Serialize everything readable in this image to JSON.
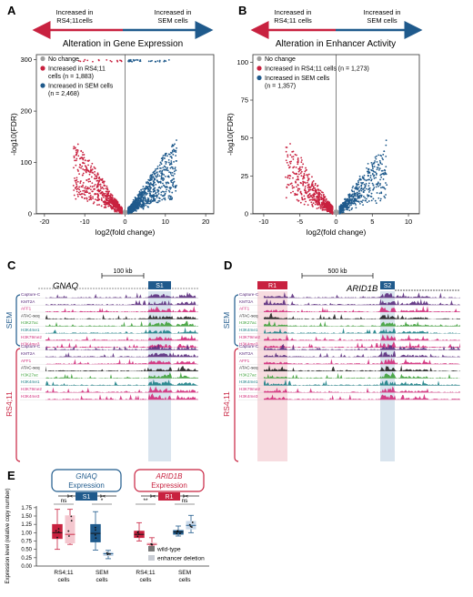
{
  "colors": {
    "red": "#c8213f",
    "blue": "#1f5a8c",
    "gray": "#9e9e9e",
    "pink_light": "#f4c7cf",
    "blue_light": "#c9d9ea",
    "region_red": "#f2c4cc",
    "region_blue": "#b9cde0",
    "track_purple": "#5b2d7e",
    "track_pink": "#d12b7a",
    "track_green": "#3ea13a",
    "track_teal": "#1a7f86",
    "track_black": "#222222"
  },
  "panelA": {
    "letter": "A",
    "arrow_left": "Increased in RS4;11cells",
    "arrow_right": "Increased in SEM cells",
    "title": "Alteration in Gene Expression",
    "legend": [
      "No change",
      "Increased in RS4;11 cells (n = 1,883)",
      "Increased in SEM cells (n = 2,468)"
    ]
  },
  "panelB": {
    "letter": "B",
    "arrow_left": "Increased in RS4;11 cells",
    "arrow_right": "Increased in SEM cells",
    "title": "Alteration in Enhancer Activity",
    "legend": [
      "No change",
      "Increased in RS4;11 cells (n = 1,273)",
      "Increased in SEM cells (n = 1,357)"
    ]
  },
  "panelC": {
    "letter": "C",
    "gene": "GNAQ",
    "scale": "100 kb",
    "region": "S1",
    "group_top": "SEM",
    "group_bottom": "RS4;11",
    "tracks": [
      "Capture-C",
      "KMT2A",
      "AFF1",
      "ATAC-seq",
      "H3K27ac",
      "H3K4me1",
      "H3K79me2",
      "H3K4me3"
    ]
  },
  "panelD": {
    "letter": "D",
    "gene": "ARID1B",
    "scale": "500 kb",
    "region1": "R1",
    "region2": "S2",
    "group_top": "SEM",
    "group_bottom": "RS4;11",
    "tracks": [
      "Capture-C",
      "KMT2A",
      "AFF1",
      "ATAC-seq",
      "H3K27ac",
      "H3K4me1",
      "H3K79me2",
      "H3K4me3"
    ]
  },
  "panelE": {
    "letter": "E",
    "gene1": "GNAQ",
    "gene1_sub": "Expression",
    "gene1_region": "S1",
    "gene2": "ARID1B",
    "gene2_sub": "Expression",
    "gene2_region": "R1",
    "ylabel": "Expression level (relative copy number)",
    "groups": [
      "RS4;11 cells",
      "SEM cells",
      "RS4;11 cells",
      "SEM cells"
    ],
    "significance": [
      "ns",
      "*",
      "**",
      "ns"
    ],
    "legend": [
      "wild-type",
      "enhancer deletion"
    ]
  },
  "chart_data": [
    {
      "type": "scatter",
      "title": "Alteration in Gene Expression",
      "xlabel": "log2(fold change)",
      "ylabel": "-log10(FDR)",
      "xlim": [
        -22,
        22
      ],
      "ylim": [
        0,
        310
      ],
      "xticks": [
        -20,
        -10,
        0,
        10,
        20
      ],
      "yticks": [
        0,
        100,
        200,
        300
      ],
      "series": [
        {
          "name": "No change",
          "color": "#9e9e9e"
        },
        {
          "name": "Increased in RS4;11 cells (n = 1,883)",
          "color": "#c8213f"
        },
        {
          "name": "Increased in SEM cells (n = 2,468)",
          "color": "#1f5a8c"
        }
      ]
    },
    {
      "type": "scatter",
      "title": "Alteration in Enhancer Activity",
      "xlabel": "log2(fold change)",
      "ylabel": "-log10(FDR)",
      "xlim": [
        -11.5,
        11.5
      ],
      "ylim": [
        0,
        105
      ],
      "xticks": [
        -10,
        -5,
        0,
        5,
        10
      ],
      "yticks": [
        0,
        25,
        50,
        75,
        100
      ],
      "series": [
        {
          "name": "No change",
          "color": "#9e9e9e"
        },
        {
          "name": "Increased in RS4;11 cells (n = 1,273)",
          "color": "#c8213f"
        },
        {
          "name": "Increased in SEM cells (n = 1,357)",
          "color": "#1f5a8c"
        }
      ]
    },
    {
      "type": "box",
      "ylabel": "Expression level (relative copy number)",
      "ylim": [
        0,
        1.8
      ],
      "yticks": [
        0.0,
        0.25,
        0.5,
        0.75,
        1.0,
        1.25,
        1.5,
        1.75
      ],
      "boxes": [
        {
          "gene": "GNAQ",
          "cells": "RS4;11 cells",
          "condition": "wild-type",
          "min": 0.5,
          "q1": 0.82,
          "median": 1.0,
          "q3": 1.25,
          "max": 1.7
        },
        {
          "gene": "GNAQ",
          "cells": "RS4;11 cells",
          "condition": "enhancer deletion",
          "min": 0.65,
          "q1": 0.68,
          "median": 0.95,
          "q3": 1.52,
          "max": 1.7
        },
        {
          "gene": "GNAQ",
          "cells": "SEM cells",
          "condition": "wild-type",
          "min": 0.48,
          "q1": 0.72,
          "median": 0.98,
          "q3": 1.25,
          "max": 1.63
        },
        {
          "gene": "GNAQ",
          "cells": "SEM cells",
          "condition": "enhancer deletion",
          "min": 0.22,
          "q1": 0.3,
          "median": 0.37,
          "q3": 0.42,
          "max": 0.47
        },
        {
          "gene": "ARID1B",
          "cells": "RS4;11 cells",
          "condition": "wild-type",
          "min": 0.75,
          "q1": 0.85,
          "median": 0.95,
          "q3": 1.05,
          "max": 1.3
        },
        {
          "gene": "ARID1B",
          "cells": "RS4;11 cells",
          "condition": "enhancer deletion",
          "min": 0.6,
          "q1": 0.63,
          "median": 0.65,
          "q3": 0.7,
          "max": 0.85
        },
        {
          "gene": "ARID1B",
          "cells": "SEM cells",
          "condition": "wild-type",
          "min": 0.9,
          "q1": 0.95,
          "median": 1.02,
          "q3": 1.07,
          "max": 1.2
        },
        {
          "gene": "ARID1B",
          "cells": "SEM cells",
          "condition": "enhancer deletion",
          "min": 1.0,
          "q1": 1.1,
          "median": 1.22,
          "q3": 1.35,
          "max": 1.52
        }
      ]
    }
  ]
}
